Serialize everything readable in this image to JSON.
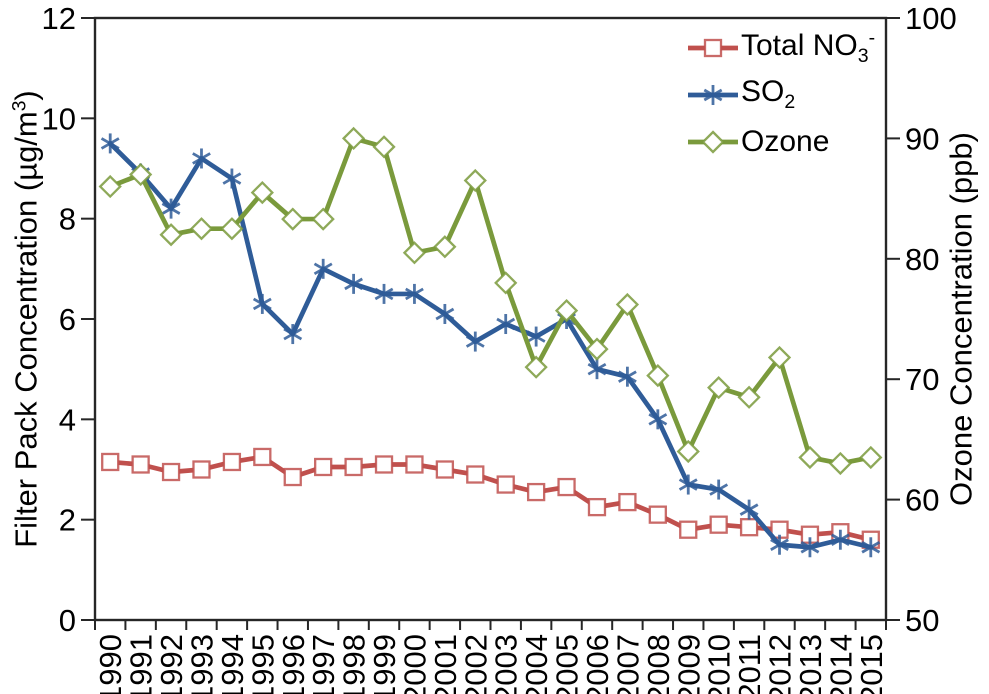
{
  "chart_data": {
    "type": "line",
    "grid": false,
    "legend_position": "top-right-inside",
    "categories": [
      "1990",
      "1991",
      "1992",
      "1993",
      "1994",
      "1995",
      "1996",
      "1997",
      "1998",
      "1999",
      "2000",
      "2001",
      "2002",
      "2003",
      "2004",
      "2005",
      "2006",
      "2007",
      "2008",
      "2009",
      "2010",
      "2011",
      "2012",
      "2013",
      "2014",
      "2015"
    ],
    "left_axis": {
      "title_pre": "Filter Pack Concentration (µg/m",
      "title_sup": "3",
      "title_post": ")",
      "min": 0,
      "max": 12,
      "ticks": [
        0,
        2,
        4,
        6,
        8,
        10,
        12
      ]
    },
    "right_axis": {
      "title": "Ozone Concentration (ppb)",
      "min": 50,
      "max": 100,
      "ticks": [
        50,
        60,
        70,
        80,
        90,
        100
      ]
    },
    "series": [
      {
        "id": "total-no3",
        "name": "Total NO3-",
        "label_pre": "Total NO",
        "label_sub": "3",
        "label_sup": "-",
        "axis": "left",
        "color": "#C0504D",
        "marker": "square",
        "values": [
          3.15,
          3.1,
          2.95,
          3.0,
          3.15,
          3.25,
          2.85,
          3.05,
          3.05,
          3.1,
          3.1,
          3.0,
          2.9,
          2.7,
          2.55,
          2.65,
          2.25,
          2.35,
          2.1,
          1.8,
          1.9,
          1.85,
          1.8,
          1.7,
          1.75,
          1.6
        ]
      },
      {
        "id": "so2",
        "name": "SO2",
        "label_pre": "SO",
        "label_sub": "2",
        "label_sup": "",
        "axis": "left",
        "color": "#2F5C98",
        "marker": "asterisk",
        "values": [
          9.5,
          8.9,
          8.2,
          9.2,
          8.8,
          6.3,
          5.7,
          7.0,
          6.7,
          6.5,
          6.5,
          6.1,
          5.55,
          5.9,
          5.65,
          6.0,
          5.0,
          4.85,
          4.0,
          2.7,
          2.6,
          2.2,
          1.5,
          1.45,
          1.6,
          1.45
        ]
      },
      {
        "id": "ozone",
        "name": "Ozone",
        "label_pre": "Ozone",
        "label_sub": "",
        "label_sup": "",
        "axis": "right",
        "color": "#7A9A3C",
        "marker": "diamond",
        "values": [
          86,
          87,
          82,
          82.5,
          82.5,
          85.5,
          83.3,
          83.3,
          90,
          89.3,
          80.5,
          81,
          86.5,
          78,
          71,
          75.7,
          72.5,
          76.2,
          70.3,
          64,
          69.3,
          68.5,
          71.8,
          63.5,
          63,
          63.5
        ]
      }
    ]
  }
}
